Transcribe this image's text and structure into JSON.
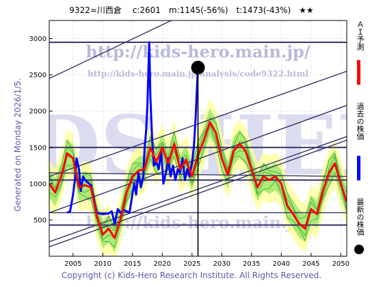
{
  "header": {
    "title": "9322=川西倉　 c:2601　m:1145(-56%)　t:1473(-43%)　★★"
  },
  "footer": {
    "copyright": "Copyright (c) Kids-Hero Research Institute. All Rights Reserved.",
    "generated": "Generated on Monday 2026/1/5."
  },
  "watermark": {
    "url_main": "http://kids-hero.main.jp/",
    "url_sub": "http://kids-hero.main.jp/analysis/code9322.html",
    "big_text": "KIDS-HERO"
  },
  "legend": {
    "ai_forecast": "ＡＩ予測",
    "past_price": "過去の株価",
    "latest_price": "最新の株価"
  },
  "colors": {
    "ai_forecast": "#ff0000",
    "past_price": "#0000ff",
    "latest_price": "#000000",
    "band_outer": "#ffff99",
    "band_inner": "#66dd44",
    "trend_lines": "#333366"
  },
  "chart_data": {
    "type": "line",
    "xlim": [
      2001,
      2051
    ],
    "ylim": [
      0,
      3250
    ],
    "xticks": [
      2005,
      2010,
      2015,
      2020,
      2025,
      2030,
      2035,
      2040,
      2045,
      2050
    ],
    "yticks": [
      500,
      1000,
      1500,
      2000,
      2500,
      3000
    ],
    "grid": true,
    "series": [
      {
        "name": "過去の株価",
        "key": "past",
        "x": [
          2004.0,
          2004.5,
          2005.0,
          2005.3,
          2005.6,
          2006.0,
          2006.3,
          2006.7,
          2007.0,
          2008.0,
          2009.0,
          2010.0,
          2011.0,
          2011.5,
          2012.0,
          2012.5,
          2013.0,
          2013.5,
          2014.0,
          2014.5,
          2015.0,
          2015.3,
          2015.6,
          2016.0,
          2016.4,
          2016.8,
          2017.0,
          2017.3,
          2017.5,
          2017.8,
          2018.0,
          2018.3,
          2018.6,
          2019.0,
          2019.4,
          2019.8,
          2020.2,
          2020.6,
          2021.0,
          2021.4,
          2021.8,
          2022.2,
          2022.6,
          2023.0,
          2023.4,
          2023.8,
          2024.2,
          2024.6,
          2025.0,
          2025.3,
          2025.6,
          2025.9,
          2026.0
        ],
        "y": [
          600,
          620,
          850,
          1050,
          1350,
          1200,
          900,
          1100,
          1050,
          980,
          600,
          580,
          590,
          620,
          450,
          650,
          600,
          640,
          620,
          600,
          870,
          1000,
          850,
          1150,
          950,
          1100,
          1450,
          1750,
          2100,
          2950,
          2200,
          1600,
          1250,
          1300,
          1200,
          1450,
          1000,
          1150,
          1350,
          1100,
          1250,
          1050,
          1200,
          1150,
          1350,
          1050,
          1200,
          1100,
          1300,
          1500,
          1900,
          2450,
          2601
        ]
      },
      {
        "name": "ＡＩ予測",
        "key": "forecast",
        "x": [
          2001,
          2002,
          2003,
          2004,
          2005,
          2006,
          2007,
          2008,
          2009,
          2010,
          2011,
          2012,
          2013,
          2014,
          2015,
          2016,
          2017,
          2018,
          2019,
          2020,
          2021,
          2022,
          2023,
          2024,
          2025,
          2026,
          2027,
          2028,
          2029,
          2030,
          2031,
          2032,
          2033,
          2034,
          2035,
          2036,
          2037,
          2038,
          2039,
          2040,
          2041,
          2042,
          2043,
          2044,
          2045,
          2046,
          2047,
          2048,
          2049,
          2050,
          2051
        ],
        "y": [
          1000,
          880,
          1100,
          1420,
          1350,
          950,
          980,
          950,
          550,
          300,
          380,
          250,
          520,
          880,
          1100,
          1180,
          1200,
          1500,
          1300,
          1500,
          1280,
          1550,
          1200,
          1330,
          1100,
          1400,
          1600,
          1850,
          1700,
          1350,
          1120,
          1450,
          1550,
          1450,
          1200,
          950,
          1100,
          1050,
          1100,
          1000,
          700,
          580,
          450,
          380,
          650,
          580,
          900,
          1150,
          1280,
          1000,
          750
        ]
      }
    ],
    "latest": {
      "x": 2026.0,
      "y": 2601
    },
    "horizontal_levels": [
      2950,
      1500,
      1050,
      430
    ],
    "trend_lines": [
      {
        "x": [
          2001,
          2051
        ],
        "y": [
          2450,
          4400
        ]
      },
      {
        "x": [
          2001,
          2051
        ],
        "y": [
          1100,
          2550
        ]
      },
      {
        "x": [
          2001,
          2051
        ],
        "y": [
          600,
          2080
        ]
      },
      {
        "x": [
          2001,
          2051
        ],
        "y": [
          130,
          1600
        ]
      },
      {
        "x": [
          2001,
          2051
        ],
        "y": [
          200,
          1650
        ]
      },
      {
        "x": [
          2001,
          2051
        ],
        "y": [
          1150,
          1100
        ]
      },
      {
        "x": [
          2001,
          2051
        ],
        "y": [
          600,
          600
        ]
      }
    ]
  }
}
